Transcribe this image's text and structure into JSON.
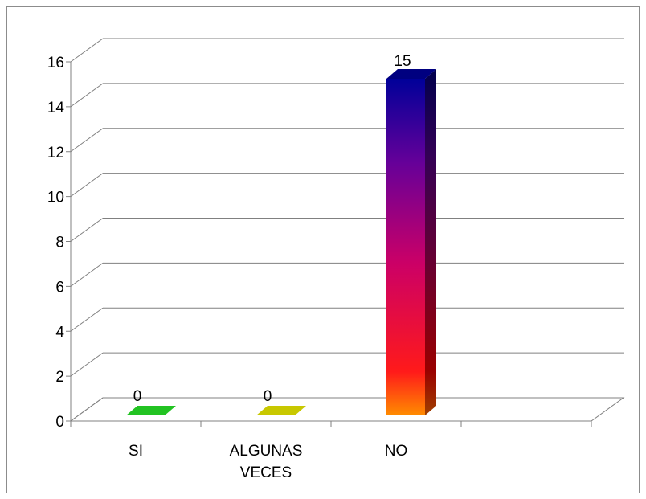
{
  "chart_data": {
    "type": "bar",
    "title": "",
    "xlabel": "",
    "ylabel": "",
    "ylim": [
      0,
      16
    ],
    "yticks": [
      0,
      2,
      4,
      6,
      8,
      10,
      12,
      14,
      16
    ],
    "categories": [
      {
        "lines": [
          "SI"
        ]
      },
      {
        "lines": [
          "ALGUNAS",
          "VECES"
        ]
      },
      {
        "lines": [
          "NO"
        ]
      }
    ],
    "values": [
      0,
      0,
      15
    ],
    "data_labels": [
      "0",
      "0",
      "15"
    ],
    "grid": true,
    "legend": "none",
    "three_d": true,
    "colors": {
      "bar_si": "#22c322",
      "bar_algunas": "#c8c800",
      "bar_no_gradient": [
        "#ff8c00",
        "#ff1a1a",
        "#cc0066",
        "#660099",
        "#000099"
      ],
      "grid": "#808080"
    }
  }
}
